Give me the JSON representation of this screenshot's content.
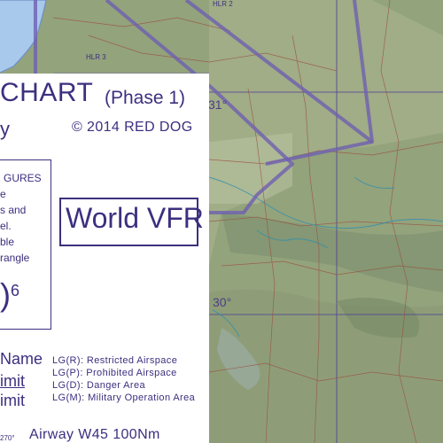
{
  "map": {
    "latitude_labels": [
      "31°",
      "30°"
    ],
    "fir_labels": [
      "HLR 2",
      "HLR 3"
    ]
  },
  "legend": {
    "title": "CHART",
    "title_suffix": "(Phase 1)",
    "title_line2_fragment": "y",
    "copyright": "© 2014 RED DOG",
    "figures_box": {
      "lines": [
        "GURES",
        "e",
        "s and",
        "el.",
        "ble",
        "rangle"
      ],
      "big_figure": ")",
      "big_figure_sup": "6"
    },
    "brand": "World VFR",
    "sample_name": "Name",
    "sample_limit_upper": "imit",
    "sample_limit_lower": "imit",
    "airspace_types": [
      "LG(R): Restricted Airspace",
      "LG(P): Prohibited Airspace",
      "LG(D): Danger Area",
      "LG(M): Military Operation Area"
    ],
    "airway_sample": "Airway W45 100Nm",
    "radial_sample": "270°"
  },
  "colors": {
    "ink": "#3d2f7f",
    "boundary": "#6e5fb0",
    "terrain_base": "#8fa07a",
    "water": "#a8c8ec"
  }
}
